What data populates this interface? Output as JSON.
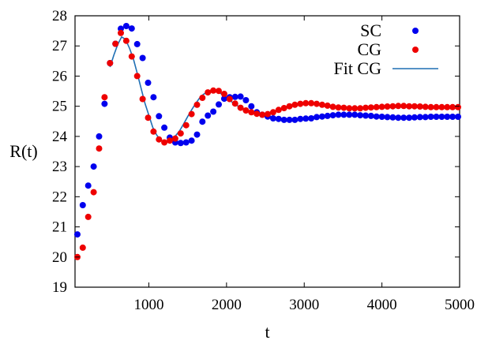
{
  "chart_data": {
    "type": "scatter",
    "title": "",
    "xlabel": "t",
    "ylabel": "R(t)",
    "xlim": [
      50,
      5000
    ],
    "ylim": [
      19,
      28
    ],
    "x_ticks": [
      1000,
      2000,
      3000,
      4000,
      5000
    ],
    "y_ticks": [
      19,
      20,
      21,
      22,
      23,
      24,
      25,
      26,
      27,
      28
    ],
    "grid": false,
    "legend_position": "top-right",
    "series": [
      {
        "name": "SC",
        "kind": "points",
        "color": "#0000ee",
        "points": [
          [
            80,
            20.75
          ],
          [
            150,
            21.72
          ],
          [
            220,
            22.37
          ],
          [
            290,
            23.0
          ],
          [
            360,
            24.0
          ],
          [
            430,
            25.08
          ],
          [
            500,
            26.43
          ],
          [
            570,
            27.07
          ],
          [
            640,
            27.57
          ],
          [
            710,
            27.66
          ],
          [
            780,
            27.58
          ],
          [
            850,
            27.06
          ],
          [
            920,
            26.6
          ],
          [
            990,
            25.78
          ],
          [
            1060,
            25.3
          ],
          [
            1130,
            24.67
          ],
          [
            1200,
            24.29
          ],
          [
            1270,
            23.96
          ],
          [
            1340,
            23.8
          ],
          [
            1410,
            23.78
          ],
          [
            1480,
            23.8
          ],
          [
            1550,
            23.86
          ],
          [
            1620,
            24.06
          ],
          [
            1690,
            24.49
          ],
          [
            1760,
            24.69
          ],
          [
            1830,
            24.82
          ],
          [
            1900,
            25.06
          ],
          [
            1970,
            25.25
          ],
          [
            2040,
            25.3
          ],
          [
            2110,
            25.31
          ],
          [
            2180,
            25.32
          ],
          [
            2250,
            25.2
          ],
          [
            2320,
            25.0
          ],
          [
            2390,
            24.8
          ],
          [
            2460,
            24.72
          ],
          [
            2530,
            24.66
          ],
          [
            2600,
            24.6
          ],
          [
            2670,
            24.58
          ],
          [
            2740,
            24.55
          ],
          [
            2810,
            24.55
          ],
          [
            2880,
            24.55
          ],
          [
            2950,
            24.58
          ],
          [
            3020,
            24.59
          ],
          [
            3090,
            24.6
          ],
          [
            3160,
            24.64
          ],
          [
            3230,
            24.66
          ],
          [
            3300,
            24.68
          ],
          [
            3370,
            24.7
          ],
          [
            3440,
            24.72
          ],
          [
            3510,
            24.72
          ],
          [
            3580,
            24.72
          ],
          [
            3650,
            24.72
          ],
          [
            3720,
            24.7
          ],
          [
            3790,
            24.69
          ],
          [
            3860,
            24.68
          ],
          [
            3930,
            24.66
          ],
          [
            4000,
            24.65
          ],
          [
            4070,
            24.64
          ],
          [
            4140,
            24.63
          ],
          [
            4210,
            24.62
          ],
          [
            4280,
            24.62
          ],
          [
            4350,
            24.62
          ],
          [
            4420,
            24.63
          ],
          [
            4490,
            24.64
          ],
          [
            4560,
            24.64
          ],
          [
            4630,
            24.65
          ],
          [
            4700,
            24.65
          ],
          [
            4770,
            24.65
          ],
          [
            4840,
            24.65
          ],
          [
            4910,
            24.65
          ],
          [
            4980,
            24.65
          ]
        ]
      },
      {
        "name": "CG",
        "kind": "points",
        "color": "#ee0000",
        "points": [
          [
            80,
            20.0
          ],
          [
            150,
            20.31
          ],
          [
            220,
            21.33
          ],
          [
            290,
            22.15
          ],
          [
            360,
            23.6
          ],
          [
            430,
            25.3
          ],
          [
            500,
            26.43
          ],
          [
            570,
            27.07
          ],
          [
            640,
            27.43
          ],
          [
            710,
            27.17
          ],
          [
            780,
            26.65
          ],
          [
            850,
            26.0
          ],
          [
            920,
            25.24
          ],
          [
            990,
            24.62
          ],
          [
            1060,
            24.16
          ],
          [
            1130,
            23.9
          ],
          [
            1200,
            23.8
          ],
          [
            1270,
            23.86
          ],
          [
            1340,
            23.93
          ],
          [
            1410,
            24.1
          ],
          [
            1480,
            24.37
          ],
          [
            1550,
            24.74
          ],
          [
            1620,
            25.05
          ],
          [
            1690,
            25.28
          ],
          [
            1760,
            25.46
          ],
          [
            1830,
            25.52
          ],
          [
            1900,
            25.51
          ],
          [
            1970,
            25.41
          ],
          [
            2040,
            25.24
          ],
          [
            2110,
            25.09
          ],
          [
            2180,
            24.95
          ],
          [
            2250,
            24.86
          ],
          [
            2320,
            24.8
          ],
          [
            2390,
            24.75
          ],
          [
            2460,
            24.72
          ],
          [
            2530,
            24.74
          ],
          [
            2600,
            24.8
          ],
          [
            2670,
            24.88
          ],
          [
            2740,
            24.94
          ],
          [
            2810,
            25.0
          ],
          [
            2880,
            25.05
          ],
          [
            2950,
            25.08
          ],
          [
            3020,
            25.1
          ],
          [
            3090,
            25.1
          ],
          [
            3160,
            25.08
          ],
          [
            3230,
            25.05
          ],
          [
            3300,
            25.02
          ],
          [
            3370,
            24.98
          ],
          [
            3440,
            24.96
          ],
          [
            3510,
            24.95
          ],
          [
            3580,
            24.93
          ],
          [
            3650,
            24.93
          ],
          [
            3720,
            24.93
          ],
          [
            3790,
            24.95
          ],
          [
            3860,
            24.96
          ],
          [
            3930,
            24.97
          ],
          [
            4000,
            24.98
          ],
          [
            4070,
            24.99
          ],
          [
            4140,
            25.0
          ],
          [
            4210,
            25.01
          ],
          [
            4280,
            25.01
          ],
          [
            4350,
            25.0
          ],
          [
            4420,
            25.0
          ],
          [
            4490,
            24.99
          ],
          [
            4560,
            24.98
          ],
          [
            4630,
            24.97
          ],
          [
            4700,
            24.97
          ],
          [
            4770,
            24.97
          ],
          [
            4840,
            24.97
          ],
          [
            4910,
            24.97
          ],
          [
            4980,
            24.97
          ]
        ]
      },
      {
        "name": "Fit CG",
        "kind": "line",
        "color": "#1f6fb4",
        "points": [
          [
            500,
            26.3
          ],
          [
            550,
            26.7
          ],
          [
            600,
            27.05
          ],
          [
            650,
            27.3
          ],
          [
            700,
            27.22
          ],
          [
            750,
            26.93
          ],
          [
            800,
            26.58
          ],
          [
            850,
            26.1
          ],
          [
            900,
            25.6
          ],
          [
            950,
            25.1
          ],
          [
            1000,
            24.7
          ],
          [
            1050,
            24.3
          ],
          [
            1100,
            24.05
          ],
          [
            1150,
            23.88
          ],
          [
            1200,
            23.82
          ],
          [
            1250,
            23.84
          ],
          [
            1300,
            23.92
          ],
          [
            1350,
            24.04
          ],
          [
            1400,
            24.2
          ],
          [
            1450,
            24.42
          ],
          [
            1500,
            24.66
          ],
          [
            1550,
            24.88
          ],
          [
            1600,
            25.08
          ],
          [
            1650,
            25.26
          ],
          [
            1700,
            25.39
          ],
          [
            1750,
            25.47
          ],
          [
            1800,
            25.5
          ],
          [
            1850,
            25.5
          ],
          [
            1900,
            25.46
          ],
          [
            1950,
            25.38
          ],
          [
            2000,
            25.28
          ],
          [
            2100,
            25.08
          ],
          [
            2200,
            24.92
          ],
          [
            2300,
            24.82
          ],
          [
            2400,
            24.76
          ],
          [
            2500,
            24.76
          ],
          [
            2600,
            24.82
          ],
          [
            2700,
            24.9
          ],
          [
            2800,
            24.99
          ],
          [
            2900,
            25.05
          ],
          [
            3000,
            25.08
          ],
          [
            3100,
            25.09
          ],
          [
            3200,
            25.07
          ],
          [
            3300,
            25.03
          ],
          [
            3400,
            24.98
          ],
          [
            3500,
            24.95
          ],
          [
            3600,
            24.93
          ],
          [
            3700,
            24.93
          ],
          [
            3800,
            24.95
          ],
          [
            3900,
            24.97
          ],
          [
            4000,
            24.99
          ],
          [
            4100,
            25.0
          ],
          [
            4200,
            25.01
          ],
          [
            4300,
            25.0
          ],
          [
            4400,
            25.0
          ],
          [
            4500,
            24.99
          ],
          [
            4600,
            24.98
          ],
          [
            4700,
            24.97
          ],
          [
            4800,
            24.97
          ],
          [
            4900,
            24.97
          ],
          [
            4980,
            24.97
          ]
        ]
      }
    ]
  }
}
